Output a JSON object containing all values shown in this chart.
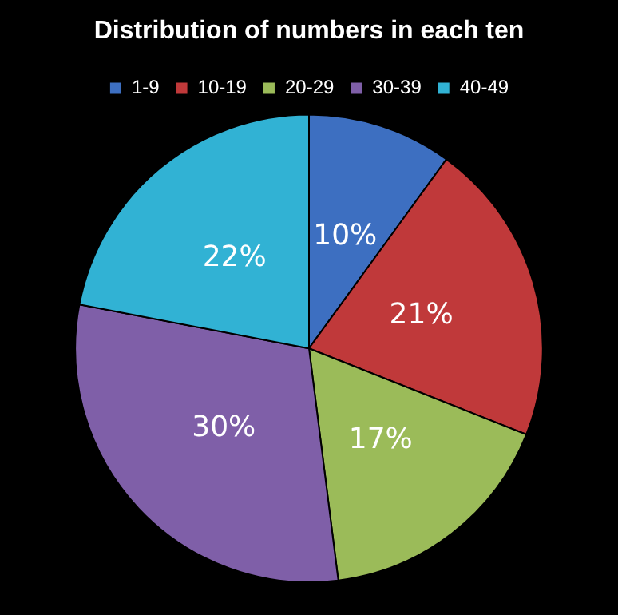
{
  "chart_data": {
    "type": "pie",
    "title": "Distribution of numbers in each ten",
    "categories": [
      "1-9",
      "10-19",
      "20-29",
      "30-39",
      "40-49"
    ],
    "values": [
      10,
      21,
      17,
      30,
      22
    ],
    "value_labels": [
      "10%",
      "21%",
      "17%",
      "30%",
      "22%"
    ],
    "colors": [
      "#3d6fc1",
      "#c0393a",
      "#9bbb59",
      "#7f5fa8",
      "#31b2d4"
    ],
    "legend": "top"
  }
}
